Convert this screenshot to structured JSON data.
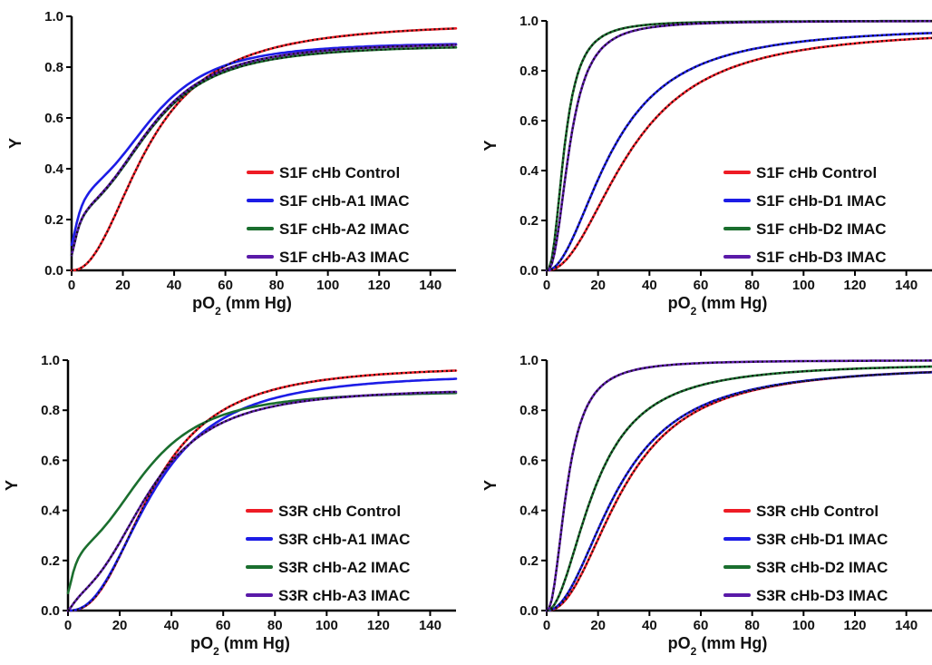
{
  "colors": {
    "red": "#ee1c25",
    "blue": "#1c1ce6",
    "green": "#1a6e2e",
    "purple": "#5a1aa8",
    "fit": "#111111"
  },
  "chart_data": [
    {
      "type": "line",
      "xlabel": "pO2 (mm Hg)",
      "ylabel": "Y",
      "xlim": [
        0,
        150
      ],
      "ylim": [
        0,
        1.0
      ],
      "xticks": [
        "0",
        "20",
        "40",
        "60",
        "80",
        "100",
        "120",
        "140"
      ],
      "yticks": [
        "0.0",
        "0.2",
        "0.4",
        "0.6",
        "0.8",
        "1.0"
      ],
      "legend_position": "lower-right",
      "grid": false,
      "series": [
        {
          "name": "S1F cHb Control",
          "color": "red",
          "model": "hill",
          "p50": 30,
          "n": 2.2,
          "ymin": 0,
          "ymax": 0.98,
          "fit": true
        },
        {
          "name": "S1F cHb-A1 IMAC",
          "color": "blue",
          "model": "two",
          "a": 0.35,
          "p1": 3.5,
          "n1": 1.4,
          "p2": 34,
          "n2": 2.8,
          "ymin": 0.1,
          "ymax": 0.9,
          "fit": false
        },
        {
          "name": "S1F cHb-A2 IMAC",
          "color": "green",
          "model": "two",
          "a": 0.28,
          "p1": 3,
          "n1": 1.4,
          "p2": 33,
          "n2": 2.6,
          "ymin": 0.06,
          "ymax": 0.89,
          "fit": true
        },
        {
          "name": "S1F cHb-A3 IMAC",
          "color": "purple",
          "model": "two",
          "a": 0.28,
          "p1": 3,
          "n1": 1.4,
          "p2": 33,
          "n2": 2.6,
          "ymin": 0.06,
          "ymax": 0.9,
          "fit": true
        }
      ]
    },
    {
      "type": "line",
      "xlabel": "pO2 (mm Hg)",
      "ylabel": "Y",
      "xlim": [
        0,
        150
      ],
      "ylim": [
        0,
        1.0
      ],
      "xticks": [
        "0",
        "20",
        "40",
        "60",
        "80",
        "100",
        "120",
        "140"
      ],
      "yticks": [
        "0.0",
        "0.2",
        "0.4",
        "0.6",
        "0.8",
        "1.0"
      ],
      "legend_position": "lower-right",
      "grid": false,
      "series": [
        {
          "name": "S1F cHb Control",
          "color": "red",
          "model": "hill",
          "p50": 33,
          "n": 2.1,
          "ymin": 0,
          "ymax": 0.97,
          "fit": true
        },
        {
          "name": "S1F cHb-D1 IMAC",
          "color": "blue",
          "model": "hill",
          "p50": 26,
          "n": 2.0,
          "ymin": 0,
          "ymax": 0.98,
          "fit": true
        },
        {
          "name": "S1F cHb-D2 IMAC",
          "color": "green",
          "model": "hill",
          "p50": 7,
          "n": 2.4,
          "ymin": 0,
          "ymax": 1.0,
          "fit": true
        },
        {
          "name": "S1F cHb-D3 IMAC",
          "color": "purple",
          "model": "hill",
          "p50": 9,
          "n": 2.4,
          "ymin": 0,
          "ymax": 1.0,
          "fit": true
        }
      ]
    },
    {
      "type": "line",
      "xlabel": "pO2 (mm Hg)",
      "ylabel": "Y",
      "xlim": [
        0,
        150
      ],
      "ylim": [
        0,
        1.0
      ],
      "xticks": [
        "0",
        "20",
        "40",
        "60",
        "80",
        "100",
        "120",
        "140"
      ],
      "yticks": [
        "0.0",
        "0.2",
        "0.4",
        "0.6",
        "0.8",
        "1.0"
      ],
      "legend_position": "lower-right",
      "grid": false,
      "series": [
        {
          "name": "S3R cHb Control",
          "color": "red",
          "model": "hill",
          "p50": 33,
          "n": 2.5,
          "ymin": 0,
          "ymax": 0.98,
          "fit": true
        },
        {
          "name": "S3R cHb-A1 IMAC",
          "color": "blue",
          "model": "hill",
          "p50": 33,
          "n": 2.4,
          "ymin": 0,
          "ymax": 0.95,
          "fit": false
        },
        {
          "name": "S3R cHb-A2 IMAC",
          "color": "green",
          "model": "two",
          "a": 0.28,
          "p1": 3,
          "n1": 1.4,
          "p2": 32,
          "n2": 2.6,
          "ymin": 0.07,
          "ymax": 0.88,
          "fit": false
        },
        {
          "name": "S3R cHb-A3 IMAC",
          "color": "purple",
          "model": "two",
          "a": 0.15,
          "p1": 6,
          "n1": 1.3,
          "p2": 33,
          "n2": 2.6,
          "ymin": 0,
          "ymax": 0.89,
          "fit": true
        }
      ]
    },
    {
      "type": "line",
      "xlabel": "pO2 (mm Hg)",
      "ylabel": "Y",
      "xlim": [
        0,
        150
      ],
      "ylim": [
        0,
        1.0
      ],
      "xticks": [
        "0",
        "20",
        "40",
        "60",
        "80",
        "100",
        "120",
        "140"
      ],
      "yticks": [
        "0.0",
        "0.2",
        "0.4",
        "0.6",
        "0.8",
        "1.0"
      ],
      "legend_position": "lower-right",
      "grid": false,
      "series": [
        {
          "name": "S3R cHb Control",
          "color": "red",
          "model": "hill",
          "p50": 30,
          "n": 2.2,
          "ymin": 0,
          "ymax": 0.98,
          "fit": true
        },
        {
          "name": "S3R cHb-D1 IMAC",
          "color": "blue",
          "model": "hill",
          "p50": 28,
          "n": 2.1,
          "ymin": 0,
          "ymax": 0.98,
          "fit": true
        },
        {
          "name": "S3R cHb-D2 IMAC",
          "color": "green",
          "model": "hill",
          "p50": 19,
          "n": 2.0,
          "ymin": 0,
          "ymax": 0.99,
          "fit": true
        },
        {
          "name": "S3R cHb-D3 IMAC",
          "color": "purple",
          "model": "hill",
          "p50": 8,
          "n": 2.2,
          "ymin": 0,
          "ymax": 1.0,
          "fit": true
        }
      ]
    }
  ]
}
